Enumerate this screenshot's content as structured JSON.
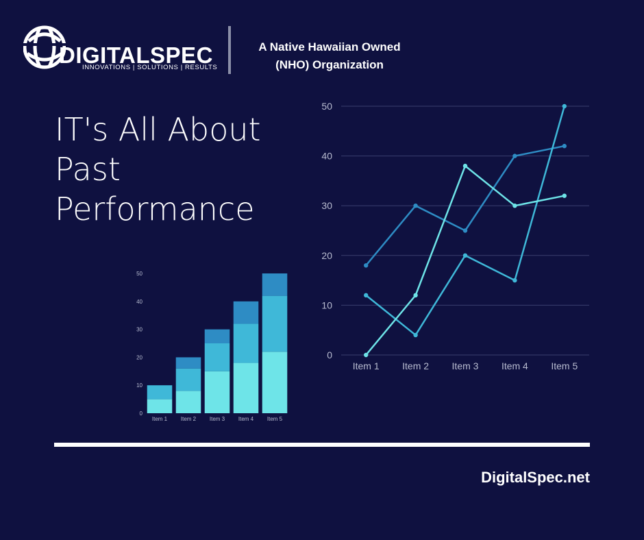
{
  "brand": {
    "name": "DIGITALSPEC",
    "tagline": "INNOVATIONS | SOLUTIONS | RESULTS",
    "org_line_1": "A Native Hawaiian Owned",
    "org_line_2": "(NHO) Organization",
    "website": "DigitalSpec.net"
  },
  "headline": {
    "line_1": "IT's All About",
    "line_2": "Past",
    "line_3": "Performance"
  },
  "colors": {
    "background": "#0f1140",
    "series_dark": "#2e8cc4",
    "series_mid": "#3fb8d8",
    "series_light": "#6ee4e8",
    "grid": "#3a3f6e"
  },
  "chart_data": [
    {
      "type": "line",
      "categories": [
        "Item 1",
        "Item 2",
        "Item 3",
        "Item 4",
        "Item 5"
      ],
      "series": [
        {
          "values": [
            18,
            30,
            25,
            40,
            42
          ],
          "color": "#2e8cc4"
        },
        {
          "values": [
            12,
            4,
            20,
            15,
            50
          ],
          "color": "#3fb8d8"
        },
        {
          "values": [
            0,
            12,
            38,
            30,
            32
          ],
          "color": "#6ee4e8"
        }
      ],
      "ylim": [
        0,
        50
      ],
      "yticks": [
        0,
        10,
        20,
        30,
        40,
        50
      ],
      "grid": true
    },
    {
      "type": "bar",
      "stacked": true,
      "categories": [
        "Item 1",
        "Item 2",
        "Item 3",
        "Item 4",
        "Item 5"
      ],
      "series": [
        {
          "values": [
            5,
            8,
            15,
            18,
            22
          ],
          "color": "#6ee4e8"
        },
        {
          "values": [
            5,
            8,
            10,
            14,
            20
          ],
          "color": "#3fb8d8"
        },
        {
          "values": [
            0,
            4,
            5,
            8,
            8
          ],
          "color": "#2e8cc4"
        }
      ],
      "ylim": [
        0,
        50
      ],
      "yticks": [
        0,
        10,
        20,
        30,
        40,
        50
      ],
      "grid": false
    }
  ]
}
